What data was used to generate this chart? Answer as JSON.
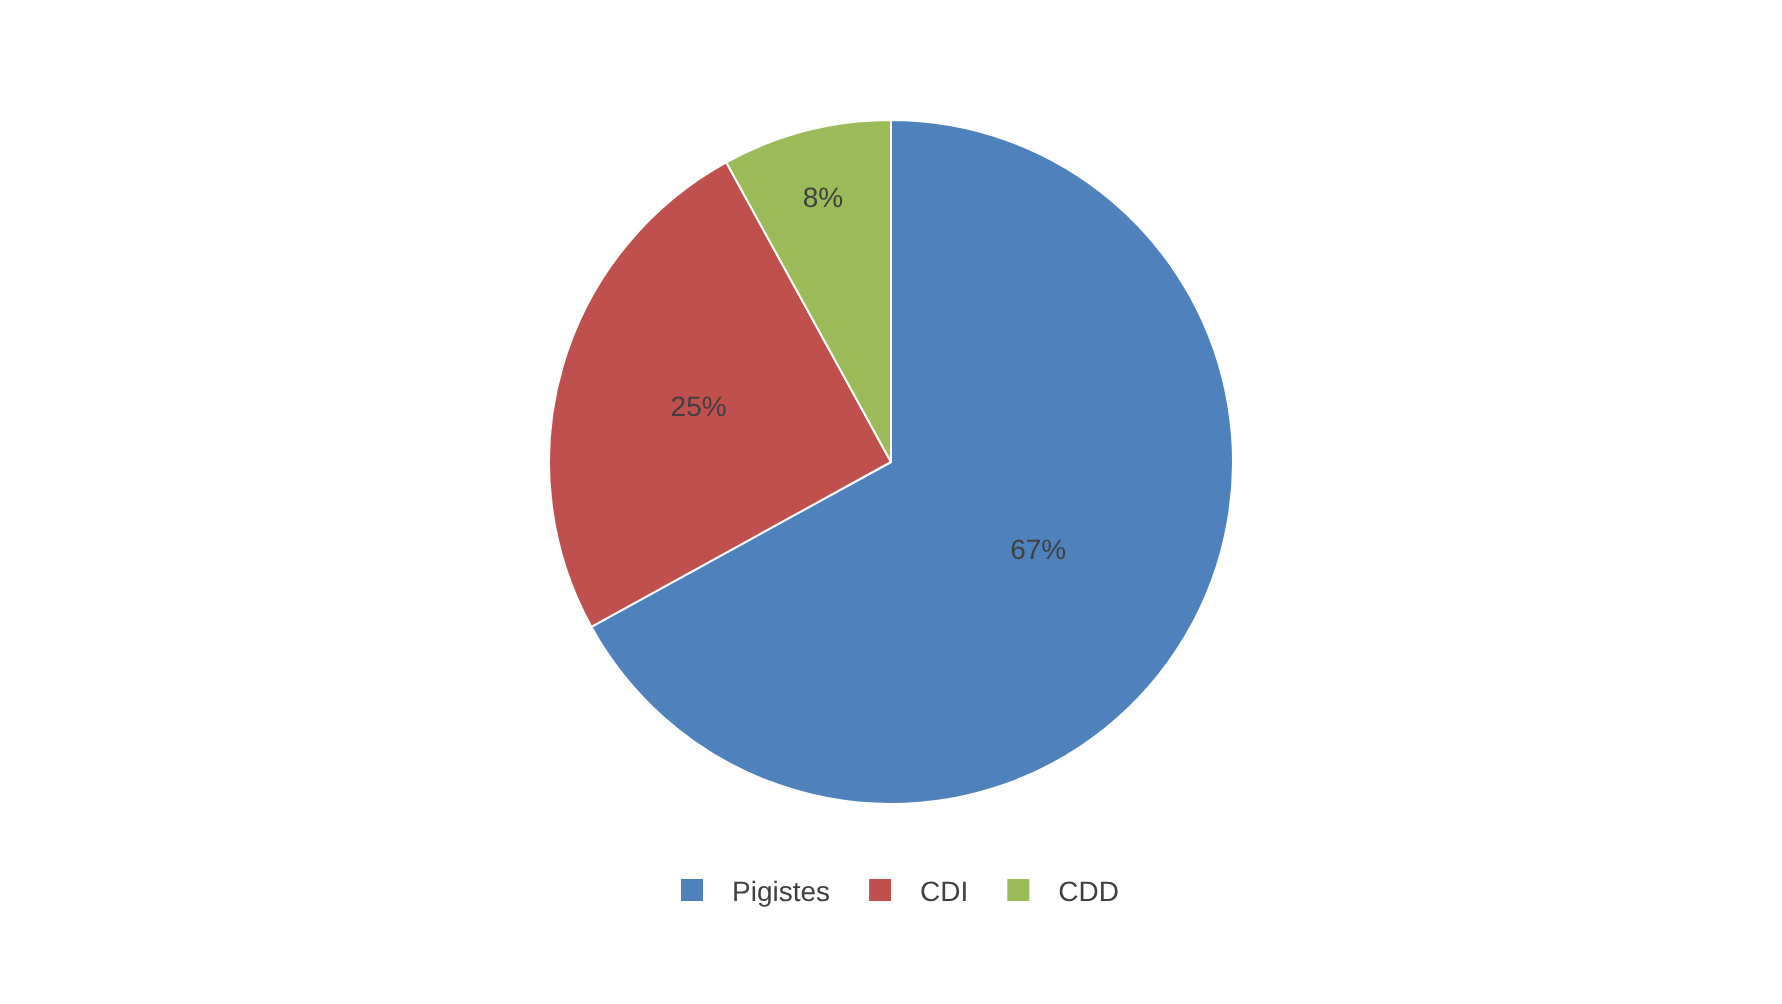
{
  "chart_data": {
    "type": "pie",
    "categories": [
      "Pigistes",
      "CDI",
      "CDD"
    ],
    "values": [
      67,
      25,
      8
    ],
    "colors": [
      "#4f81bd",
      "#c0504d",
      "#9bbb59"
    ],
    "value_labels": [
      "67%",
      "25%",
      "8%"
    ],
    "legend": "bottom"
  }
}
